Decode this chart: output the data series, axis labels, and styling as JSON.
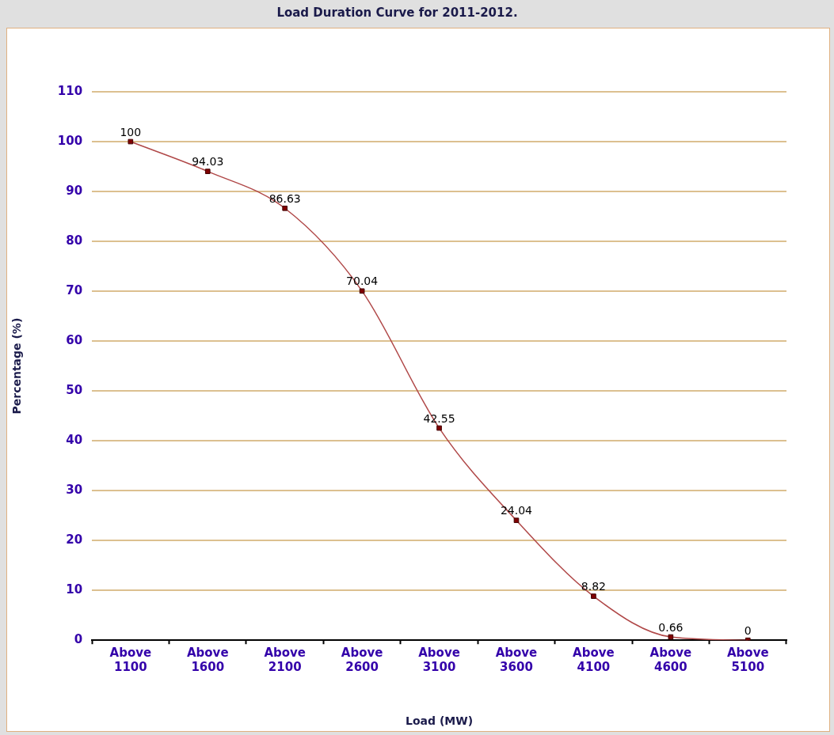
{
  "chart_data": {
    "type": "line",
    "title": "Load Duration Curve for 2011-2012.",
    "xlabel": "Load (MW)",
    "ylabel": "Percentage (%)",
    "categories": [
      "Above 1100",
      "Above 1600",
      "Above 2100",
      "Above 2600",
      "Above 3100",
      "Above 3600",
      "Above 4100",
      "Above 4600",
      "Above 5100"
    ],
    "series": [
      {
        "color": "#b04848",
        "values": [
          100,
          94.03,
          86.63,
          70.04,
          42.55,
          24.04,
          8.82,
          0.66,
          0
        ]
      }
    ],
    "ylim": [
      0,
      110
    ],
    "yticks": [
      0,
      10,
      20,
      30,
      40,
      50,
      60,
      70,
      80,
      90,
      100,
      110
    ],
    "grid": "y",
    "legend": false,
    "marker": "square",
    "data_labels": true
  }
}
